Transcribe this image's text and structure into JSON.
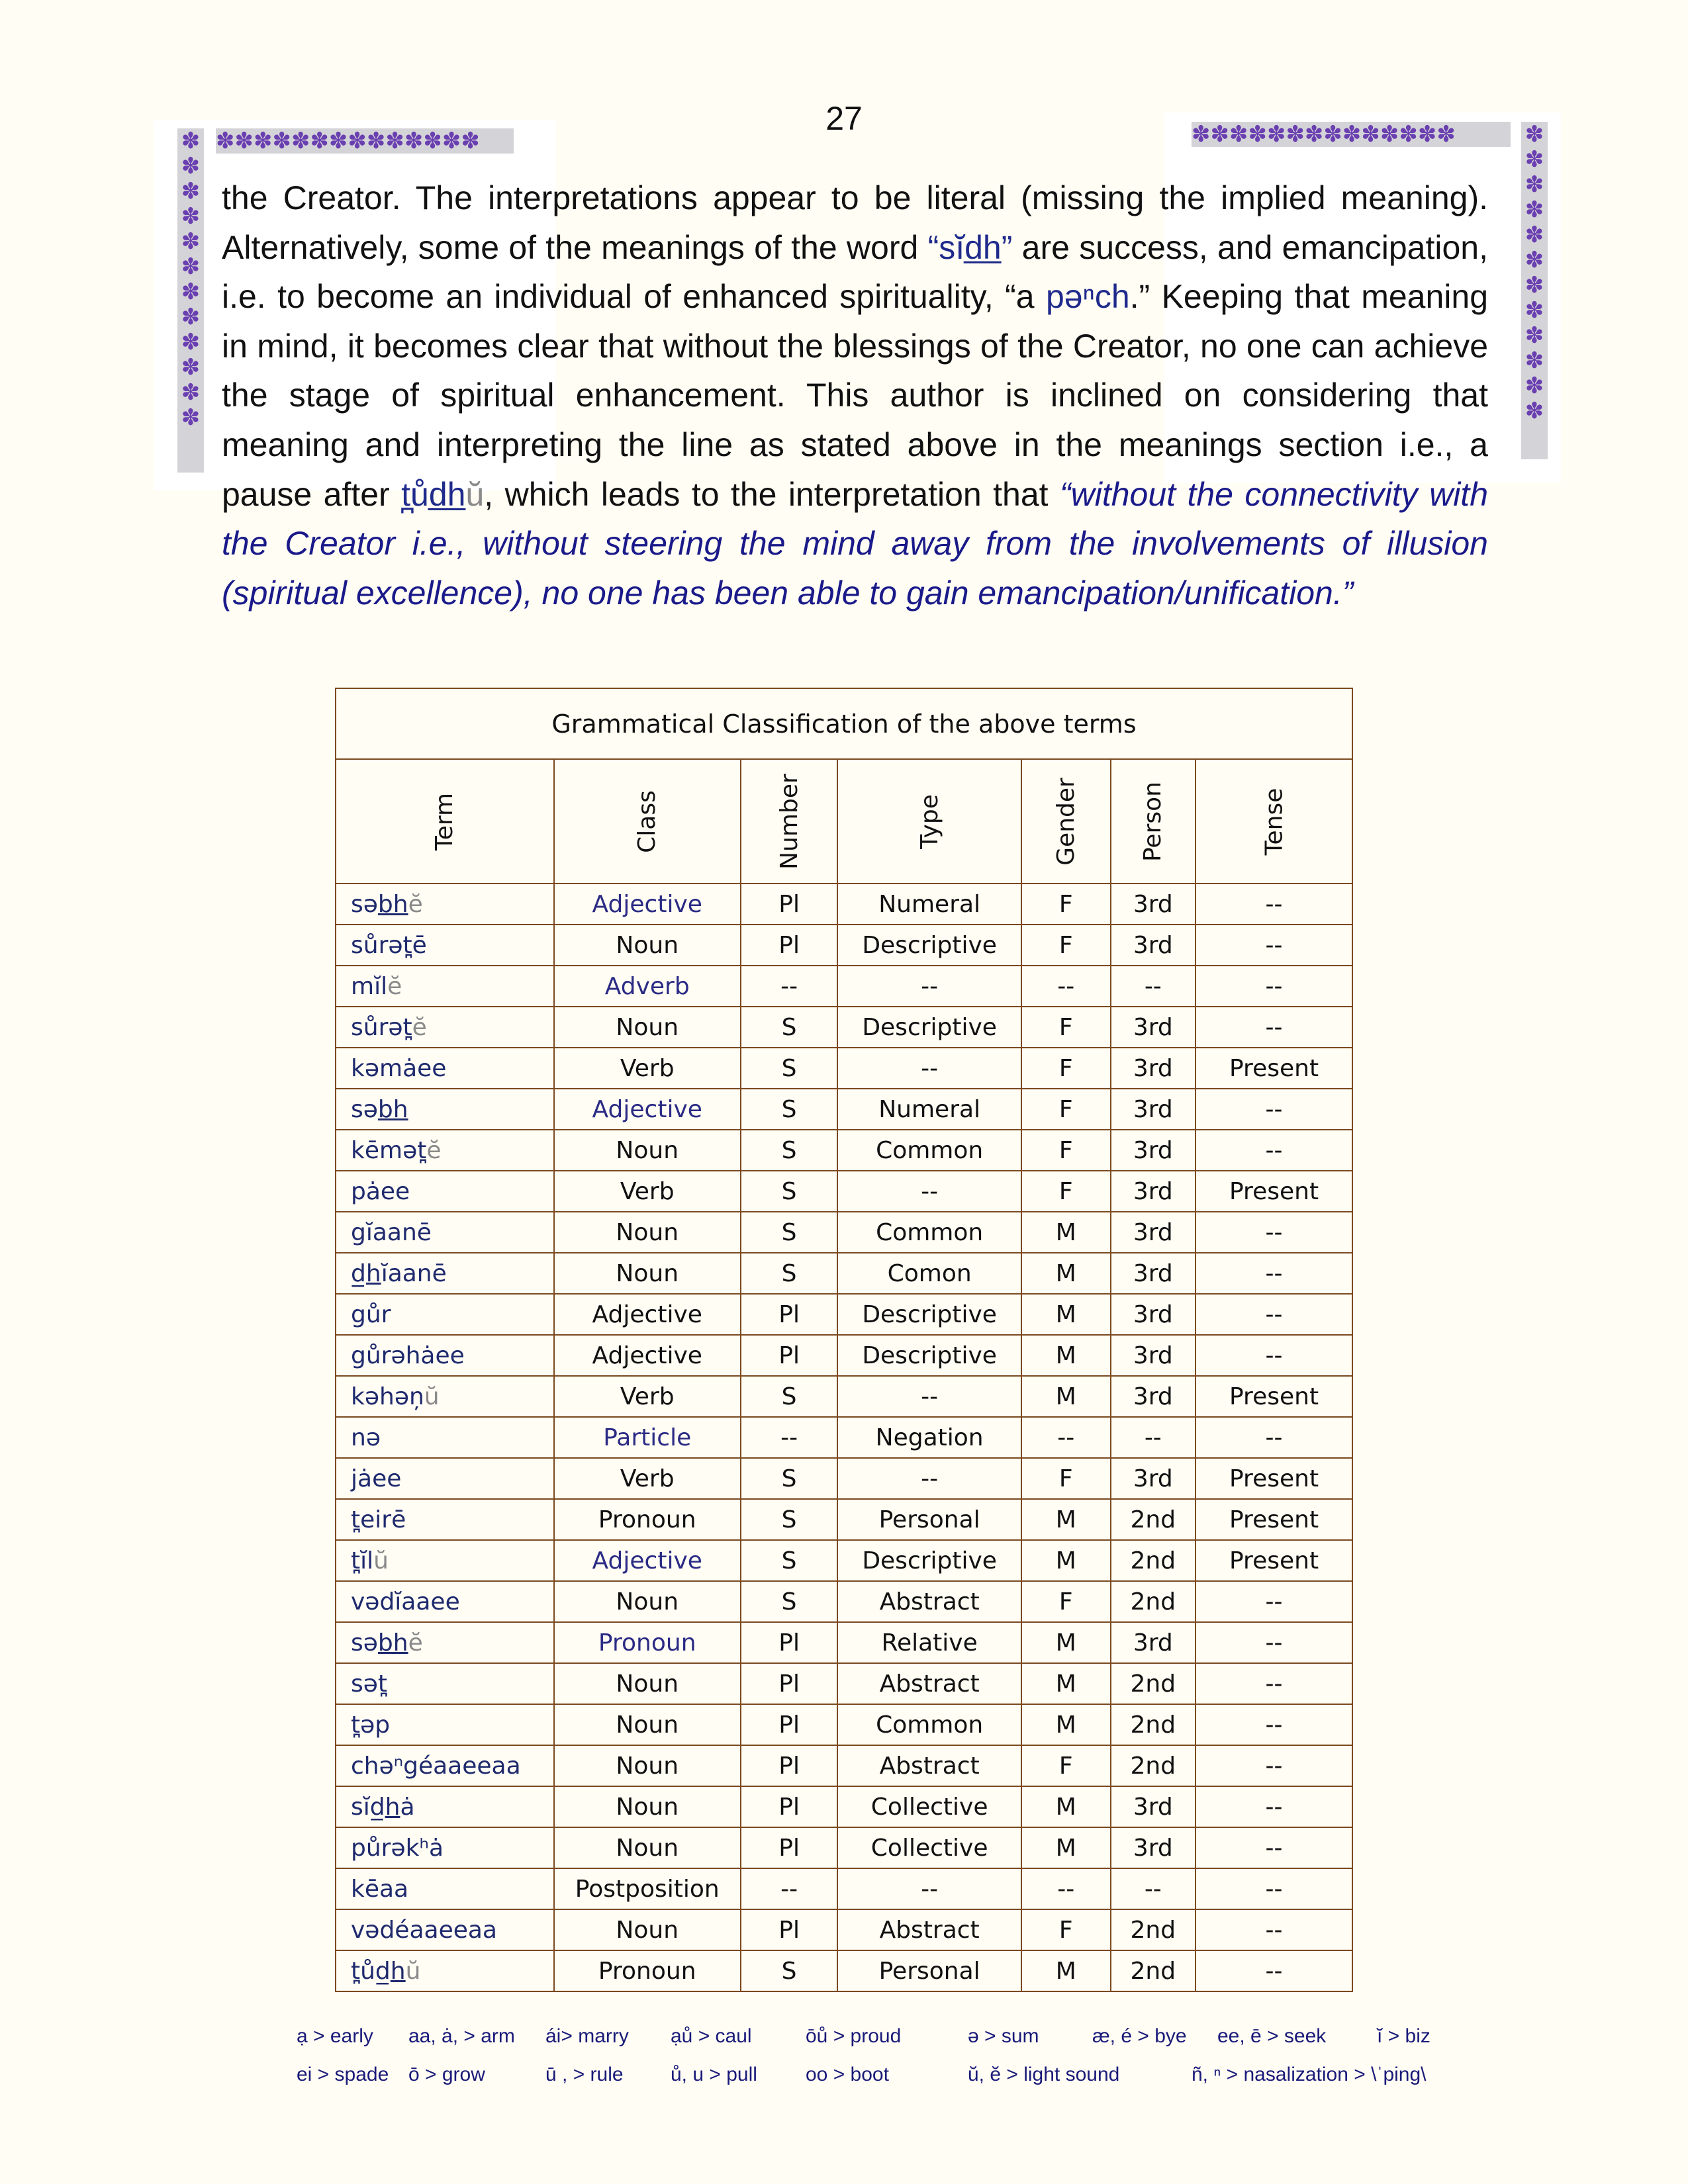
{
  "page_number": "27",
  "border_glyph": "✽",
  "colors": {
    "accent_blue": "#1f2a8c",
    "border_purple": "#6a3fb0",
    "table_border": "#7a4a20"
  },
  "paragraph": {
    "p1": "the Creator. The interpretations appear to be literal (missing the implied meaning). Alternatively, some of the meanings of the word ",
    "word1": "“sĭd̲h̲”",
    "p2": " are success, and emancipation, i.e. to become an individual of enhanced spirituality, “a ",
    "word2": "pəⁿch",
    "p3": ".” Keeping that meaning in mind, it becomes clear that without the blessings of the Creator, no one can achieve the stage of spiritual enhancement. This author is inclined on considering that meaning and interpreting the line as stated above in the meanings section i.e., a pause after ",
    "word3": "t̪ůd̲h̲",
    "word3_suffix": "ŭ",
    "p4": ", which leads to the interpretation that ",
    "quote": "“without the connectivity with the Creator i.e., without steering the mind away from the involvements of illusion (spiritual excellence), no one has been able to gain emancipation/unification.”"
  },
  "table": {
    "title": "Grammatical Classification of the above terms",
    "headers": [
      "Term",
      "Class",
      "Number",
      "Type",
      "Gender",
      "Person",
      "Tense"
    ],
    "rows": [
      {
        "term": [
          [
            "sə",
            ""
          ],
          [
            "bh",
            "u"
          ],
          [
            "ĕ",
            "g"
          ]
        ],
        "class": "Adjective",
        "class_blue": true,
        "number": "Pl",
        "type": "Numeral",
        "gender": "F",
        "person": "3rd",
        "tense": "--"
      },
      {
        "term": [
          [
            "sůrət̪ē",
            ""
          ]
        ],
        "class": "Noun",
        "number": "Pl",
        "type": "Descriptive",
        "gender": "F",
        "person": "3rd",
        "tense": "--"
      },
      {
        "term": [
          [
            "mĭl",
            ""
          ],
          [
            "ĕ",
            "g"
          ]
        ],
        "class": "Adverb",
        "class_blue": true,
        "number": "--",
        "type": "--",
        "gender": "--",
        "person": "--",
        "tense": "--"
      },
      {
        "term": [
          [
            "sůrət̪",
            ""
          ],
          [
            "ĕ",
            "g"
          ]
        ],
        "class": "Noun",
        "number": "S",
        "type": "Descriptive",
        "gender": "F",
        "person": "3rd",
        "tense": "--"
      },
      {
        "term": [
          [
            "kəmȧee",
            ""
          ]
        ],
        "class": "Verb",
        "number": "S",
        "type": "--",
        "gender": "F",
        "person": "3rd",
        "tense": "Present"
      },
      {
        "term": [
          [
            "sə",
            ""
          ],
          [
            "bh",
            "u"
          ]
        ],
        "class": "Adjective",
        "class_blue": true,
        "number": "S",
        "type": "Numeral",
        "gender": "F",
        "person": "3rd",
        "tense": "--"
      },
      {
        "term": [
          [
            "kēmət̪",
            ""
          ],
          [
            "ĕ",
            "g"
          ]
        ],
        "class": "Noun",
        "number": "S",
        "type": "Common",
        "gender": "F",
        "person": "3rd",
        "tense": "--"
      },
      {
        "term": [
          [
            "pȧee",
            ""
          ]
        ],
        "class": "Verb",
        "number": "S",
        "type": "--",
        "gender": "F",
        "person": "3rd",
        "tense": "Present"
      },
      {
        "term": [
          [
            "gĭaanē",
            ""
          ]
        ],
        "class": "Noun",
        "number": "S",
        "type": "Common",
        "gender": "M",
        "person": "3rd",
        "tense": "--"
      },
      {
        "term": [
          [
            "d̲",
            ""
          ],
          [
            "h",
            "u"
          ],
          [
            "ĭaanē",
            ""
          ]
        ],
        "class": "Noun",
        "number": "S",
        "type": "Comon",
        "gender": "M",
        "person": "3rd",
        "tense": "--"
      },
      {
        "term": [
          [
            "gůr",
            ""
          ]
        ],
        "class": "Adjective",
        "number": "Pl",
        "type": "Descriptive",
        "gender": "M",
        "person": "3rd",
        "tense": "--"
      },
      {
        "term": [
          [
            "gůrəhȧee",
            ""
          ]
        ],
        "class": "Adjective",
        "number": "Pl",
        "type": "Descriptive",
        "gender": "M",
        "person": "3rd",
        "tense": "--"
      },
      {
        "term": [
          [
            "kəhəņ",
            ""
          ],
          [
            "ŭ",
            "g"
          ]
        ],
        "class": "Verb",
        "number": "S",
        "type": "--",
        "gender": "M",
        "person": "3rd",
        "tense": "Present"
      },
      {
        "term": [
          [
            "nə",
            ""
          ]
        ],
        "class": "Particle",
        "class_blue": true,
        "number": "--",
        "type": "Negation",
        "gender": "--",
        "person": "--",
        "tense": "--"
      },
      {
        "term": [
          [
            "jȧee",
            ""
          ]
        ],
        "class": "Verb",
        "number": "S",
        "type": "--",
        "gender": "F",
        "person": "3rd",
        "tense": "Present"
      },
      {
        "term": [
          [
            "t̪eirē",
            ""
          ]
        ],
        "class": "Pronoun",
        "number": "S",
        "type": "Personal",
        "gender": "M",
        "person": "2nd",
        "tense": "Present"
      },
      {
        "term": [
          [
            "t̪ĭl",
            ""
          ],
          [
            "ŭ",
            "g"
          ]
        ],
        "class": "Adjective",
        "class_blue": true,
        "number": "S",
        "type": "Descriptive",
        "gender": "M",
        "person": "2nd",
        "tense": "Present"
      },
      {
        "term": [
          [
            "vədĭaaee",
            ""
          ]
        ],
        "class": "Noun",
        "number": "S",
        "type": "Abstract",
        "gender": "F",
        "person": "2nd",
        "tense": "--"
      },
      {
        "term": [
          [
            "sə",
            ""
          ],
          [
            "bh",
            "u"
          ],
          [
            "ĕ",
            "g"
          ]
        ],
        "class": "Pronoun",
        "class_blue": true,
        "number": "Pl",
        "type": "Relative",
        "gender": "M",
        "person": "3rd",
        "tense": "--"
      },
      {
        "term": [
          [
            "sət̪",
            ""
          ]
        ],
        "class": "Noun",
        "number": "Pl",
        "type": "Abstract",
        "gender": "M",
        "person": "2nd",
        "tense": "--"
      },
      {
        "term": [
          [
            "t̪əp",
            ""
          ]
        ],
        "class": "Noun",
        "number": "Pl",
        "type": "Common",
        "gender": "M",
        "person": "2nd",
        "tense": "--"
      },
      {
        "term": [
          [
            "chəⁿgéaaeeaa",
            ""
          ]
        ],
        "class": "Noun",
        "number": "Pl",
        "type": "Abstract",
        "gender": "F",
        "person": "2nd",
        "tense": "--"
      },
      {
        "term": [
          [
            "sĭd̲",
            ""
          ],
          [
            "h",
            "u"
          ],
          [
            "ȧ",
            ""
          ]
        ],
        "class": "Noun",
        "number": "Pl",
        "type": "Collective",
        "gender": "M",
        "person": "3rd",
        "tense": "--"
      },
      {
        "term": [
          [
            "půrəkʰȧ",
            ""
          ]
        ],
        "class": "Noun",
        "number": "Pl",
        "type": "Collective",
        "gender": "M",
        "person": "3rd",
        "tense": "--"
      },
      {
        "term": [
          [
            "kēaa",
            ""
          ]
        ],
        "class": "Postposition",
        "number": "--",
        "type": "--",
        "gender": "--",
        "person": "--",
        "tense": "--"
      },
      {
        "term": [
          [
            "vədéaaeeaa",
            ""
          ]
        ],
        "class": "Noun",
        "number": "Pl",
        "type": "Abstract",
        "gender": "F",
        "person": "2nd",
        "tense": "--"
      },
      {
        "term": [
          [
            "t̪ůd̲",
            ""
          ],
          [
            "h",
            "u"
          ],
          [
            "ŭ",
            "g"
          ]
        ],
        "class": "Pronoun",
        "number": "S",
        "type": "Personal",
        "gender": "M",
        "person": "2nd",
        "tense": "--"
      }
    ]
  },
  "legend": {
    "row1": [
      "ạ > early",
      "aa, ȧ, > arm",
      "ái> marry",
      "ạů > caul",
      "ōů > proud",
      "ə > sum",
      "æ, é > bye",
      "ee, ē > seek",
      "ĭ > biz"
    ],
    "row2": [
      "ei > spade",
      "ō > grow",
      "ū , > rule",
      "ů, u > pull",
      "oo > boot",
      "ŭ, ĕ > light sound",
      "ñ, ⁿ > nasalization > \\ˈping\\"
    ]
  }
}
